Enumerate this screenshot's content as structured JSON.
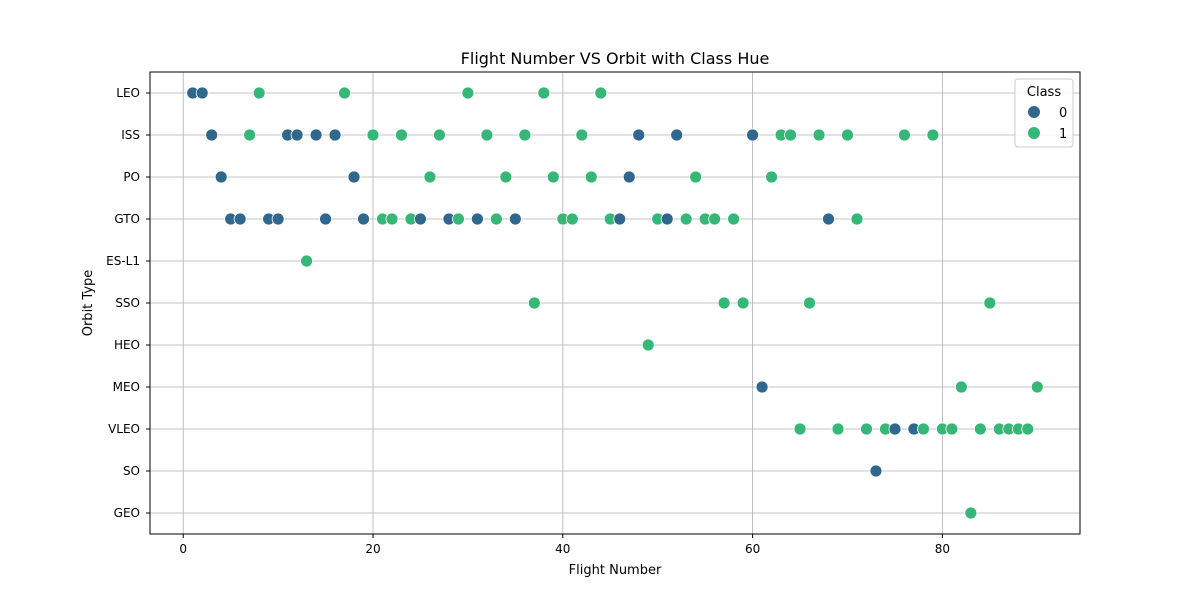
{
  "chart_data": {
    "type": "scatter",
    "title": "Flight Number VS Orbit with Class Hue",
    "xlabel": "Flight Number",
    "ylabel": "Orbit Type",
    "xlim": [
      -3.5,
      94.5
    ],
    "x_ticks": [
      0,
      20,
      40,
      60,
      80
    ],
    "categories_y": [
      "LEO",
      "ISS",
      "PO",
      "GTO",
      "ES-L1",
      "SSO",
      "HEO",
      "MEO",
      "VLEO",
      "SO",
      "GEO"
    ],
    "grid": true,
    "legend": {
      "title": "Class",
      "placement": "top-right",
      "entries": [
        "0",
        "1"
      ]
    },
    "hue_colors": {
      "0": "#30678d",
      "1": "#35b778"
    },
    "points": [
      {
        "x": 1,
        "orbit": "LEO",
        "class": 0
      },
      {
        "x": 2,
        "orbit": "LEO",
        "class": 0
      },
      {
        "x": 3,
        "orbit": "ISS",
        "class": 0
      },
      {
        "x": 4,
        "orbit": "PO",
        "class": 0
      },
      {
        "x": 5,
        "orbit": "GTO",
        "class": 0
      },
      {
        "x": 6,
        "orbit": "GTO",
        "class": 0
      },
      {
        "x": 7,
        "orbit": "ISS",
        "class": 1
      },
      {
        "x": 8,
        "orbit": "LEO",
        "class": 1
      },
      {
        "x": 9,
        "orbit": "GTO",
        "class": 0
      },
      {
        "x": 10,
        "orbit": "GTO",
        "class": 0
      },
      {
        "x": 11,
        "orbit": "ISS",
        "class": 0
      },
      {
        "x": 12,
        "orbit": "ISS",
        "class": 0
      },
      {
        "x": 13,
        "orbit": "ES-L1",
        "class": 1
      },
      {
        "x": 14,
        "orbit": "ISS",
        "class": 0
      },
      {
        "x": 15,
        "orbit": "GTO",
        "class": 0
      },
      {
        "x": 16,
        "orbit": "ISS",
        "class": 0
      },
      {
        "x": 17,
        "orbit": "LEO",
        "class": 1
      },
      {
        "x": 18,
        "orbit": "PO",
        "class": 0
      },
      {
        "x": 19,
        "orbit": "GTO",
        "class": 0
      },
      {
        "x": 20,
        "orbit": "ISS",
        "class": 1
      },
      {
        "x": 21,
        "orbit": "GTO",
        "class": 1
      },
      {
        "x": 22,
        "orbit": "GTO",
        "class": 1
      },
      {
        "x": 23,
        "orbit": "ISS",
        "class": 1
      },
      {
        "x": 24,
        "orbit": "GTO",
        "class": 1
      },
      {
        "x": 25,
        "orbit": "GTO",
        "class": 0
      },
      {
        "x": 26,
        "orbit": "PO",
        "class": 1
      },
      {
        "x": 27,
        "orbit": "ISS",
        "class": 1
      },
      {
        "x": 28,
        "orbit": "GTO",
        "class": 0
      },
      {
        "x": 29,
        "orbit": "GTO",
        "class": 1
      },
      {
        "x": 30,
        "orbit": "LEO",
        "class": 1
      },
      {
        "x": 31,
        "orbit": "GTO",
        "class": 0
      },
      {
        "x": 32,
        "orbit": "ISS",
        "class": 1
      },
      {
        "x": 33,
        "orbit": "GTO",
        "class": 1
      },
      {
        "x": 34,
        "orbit": "PO",
        "class": 1
      },
      {
        "x": 35,
        "orbit": "GTO",
        "class": 0
      },
      {
        "x": 36,
        "orbit": "ISS",
        "class": 1
      },
      {
        "x": 37,
        "orbit": "SSO",
        "class": 1
      },
      {
        "x": 38,
        "orbit": "LEO",
        "class": 1
      },
      {
        "x": 39,
        "orbit": "PO",
        "class": 1
      },
      {
        "x": 40,
        "orbit": "GTO",
        "class": 1
      },
      {
        "x": 41,
        "orbit": "GTO",
        "class": 1
      },
      {
        "x": 42,
        "orbit": "ISS",
        "class": 1
      },
      {
        "x": 43,
        "orbit": "PO",
        "class": 1
      },
      {
        "x": 44,
        "orbit": "LEO",
        "class": 1
      },
      {
        "x": 45,
        "orbit": "GTO",
        "class": 1
      },
      {
        "x": 46,
        "orbit": "GTO",
        "class": 0
      },
      {
        "x": 47,
        "orbit": "PO",
        "class": 0
      },
      {
        "x": 48,
        "orbit": "ISS",
        "class": 0
      },
      {
        "x": 49,
        "orbit": "HEO",
        "class": 1
      },
      {
        "x": 50,
        "orbit": "GTO",
        "class": 1
      },
      {
        "x": 51,
        "orbit": "GTO",
        "class": 0
      },
      {
        "x": 52,
        "orbit": "ISS",
        "class": 0
      },
      {
        "x": 53,
        "orbit": "GTO",
        "class": 1
      },
      {
        "x": 54,
        "orbit": "PO",
        "class": 1
      },
      {
        "x": 55,
        "orbit": "GTO",
        "class": 1
      },
      {
        "x": 56,
        "orbit": "GTO",
        "class": 1
      },
      {
        "x": 57,
        "orbit": "SSO",
        "class": 1
      },
      {
        "x": 58,
        "orbit": "GTO",
        "class": 1
      },
      {
        "x": 59,
        "orbit": "SSO",
        "class": 1
      },
      {
        "x": 60,
        "orbit": "ISS",
        "class": 0
      },
      {
        "x": 61,
        "orbit": "MEO",
        "class": 0
      },
      {
        "x": 62,
        "orbit": "PO",
        "class": 1
      },
      {
        "x": 63,
        "orbit": "ISS",
        "class": 1
      },
      {
        "x": 64,
        "orbit": "ISS",
        "class": 1
      },
      {
        "x": 65,
        "orbit": "VLEO",
        "class": 1
      },
      {
        "x": 66,
        "orbit": "SSO",
        "class": 1
      },
      {
        "x": 67,
        "orbit": "ISS",
        "class": 1
      },
      {
        "x": 68,
        "orbit": "GTO",
        "class": 0
      },
      {
        "x": 69,
        "orbit": "VLEO",
        "class": 1
      },
      {
        "x": 70,
        "orbit": "ISS",
        "class": 1
      },
      {
        "x": 71,
        "orbit": "GTO",
        "class": 1
      },
      {
        "x": 72,
        "orbit": "VLEO",
        "class": 1
      },
      {
        "x": 73,
        "orbit": "SO",
        "class": 0
      },
      {
        "x": 74,
        "orbit": "VLEO",
        "class": 1
      },
      {
        "x": 75,
        "orbit": "VLEO",
        "class": 0
      },
      {
        "x": 76,
        "orbit": "ISS",
        "class": 1
      },
      {
        "x": 77,
        "orbit": "VLEO",
        "class": 0
      },
      {
        "x": 78,
        "orbit": "VLEO",
        "class": 1
      },
      {
        "x": 79,
        "orbit": "ISS",
        "class": 1
      },
      {
        "x": 80,
        "orbit": "VLEO",
        "class": 1
      },
      {
        "x": 81,
        "orbit": "VLEO",
        "class": 1
      },
      {
        "x": 82,
        "orbit": "MEO",
        "class": 1
      },
      {
        "x": 83,
        "orbit": "GEO",
        "class": 1
      },
      {
        "x": 84,
        "orbit": "VLEO",
        "class": 1
      },
      {
        "x": 85,
        "orbit": "SSO",
        "class": 1
      },
      {
        "x": 86,
        "orbit": "VLEO",
        "class": 1
      },
      {
        "x": 87,
        "orbit": "VLEO",
        "class": 1
      },
      {
        "x": 88,
        "orbit": "VLEO",
        "class": 1
      },
      {
        "x": 89,
        "orbit": "VLEO",
        "class": 1
      },
      {
        "x": 90,
        "orbit": "MEO",
        "class": 1
      }
    ]
  }
}
